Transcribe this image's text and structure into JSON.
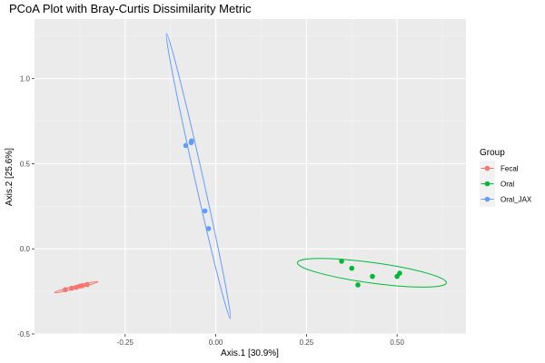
{
  "chart_data": {
    "type": "scatter",
    "title": "PCoA Plot with Bray-Curtis Dissimilarity Metric",
    "xlabel": "Axis.1   [30.9%]",
    "ylabel": "Axis.2   [25.6%]",
    "xlim": [
      -0.5,
      0.69
    ],
    "ylim": [
      -0.5,
      1.35
    ],
    "x_ticks": [
      -0.25,
      0.0,
      0.25,
      0.5
    ],
    "x_tick_labels": [
      "-0.25",
      "0.00",
      "0.25",
      "0.50"
    ],
    "y_ticks": [
      -0.5,
      0.0,
      0.5,
      1.0
    ],
    "y_tick_labels": [
      "-0.5",
      "0.0",
      "0.5",
      "1.0"
    ],
    "grid": true,
    "legend": {
      "title": "Group",
      "position": "right"
    },
    "series": [
      {
        "name": "Fecal",
        "color": "#F8766D",
        "points": [
          {
            "x": -0.415,
            "y": -0.24
          },
          {
            "x": -0.398,
            "y": -0.232
          },
          {
            "x": -0.385,
            "y": -0.226
          },
          {
            "x": -0.375,
            "y": -0.219
          },
          {
            "x": -0.368,
            "y": -0.216
          },
          {
            "x": -0.355,
            "y": -0.21
          }
        ],
        "ellipse": {
          "x_start": -0.445,
          "y_start": -0.257,
          "x_end": -0.325,
          "y_end": -0.193,
          "minor_half_width": 0.006
        }
      },
      {
        "name": "Oral",
        "color": "#00BA38",
        "points": [
          {
            "x": 0.347,
            "y": -0.073
          },
          {
            "x": 0.375,
            "y": -0.114
          },
          {
            "x": 0.392,
            "y": -0.212
          },
          {
            "x": 0.432,
            "y": -0.162
          },
          {
            "x": 0.5,
            "y": -0.162
          },
          {
            "x": 0.507,
            "y": -0.143
          }
        ],
        "ellipse": {
          "x_start": 0.225,
          "y_start": -0.081,
          "x_end": 0.636,
          "y_end": -0.2,
          "minor_half_width": 0.06
        }
      },
      {
        "name": "Oral_JAX",
        "color": "#619CFF",
        "points": [
          {
            "x": -0.083,
            "y": 0.607
          },
          {
            "x": -0.068,
            "y": 0.624
          },
          {
            "x": -0.067,
            "y": 0.634
          },
          {
            "x": -0.03,
            "y": 0.223
          },
          {
            "x": -0.02,
            "y": 0.119
          }
        ],
        "ellipse": {
          "x_start": -0.136,
          "y_start": 1.265,
          "x_end": 0.04,
          "y_end": -0.41,
          "minor_half_width": 0.024
        }
      }
    ]
  }
}
